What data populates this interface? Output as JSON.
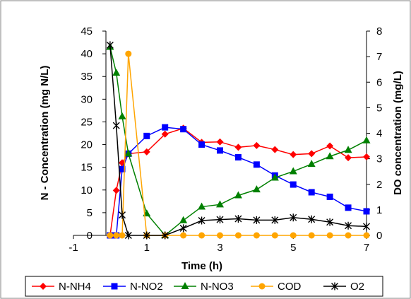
{
  "chart_data": {
    "type": "line",
    "xlabel": "Time (h)",
    "ylabel": "N - Concentration (mg N/L)",
    "y2label": "DO concentration (mg/L)",
    "xlim": [
      -1,
      7
    ],
    "ylim": [
      0,
      45
    ],
    "y2lim": [
      0,
      8
    ],
    "xticks": [
      "-1",
      "1",
      "3",
      "5",
      "7"
    ],
    "yticks": [
      "0",
      "5",
      "10",
      "15",
      "20",
      "25",
      "30",
      "35",
      "40",
      "45"
    ],
    "y2ticks": [
      "0",
      "1",
      "2",
      "3",
      "4",
      "5",
      "6",
      "7",
      "8"
    ],
    "grid": false,
    "legend_position": "bottom",
    "series": [
      {
        "name": "N-NH4",
        "color": "#ff0000",
        "marker": "diamond",
        "axis": "left",
        "x": [
          0,
          0.17,
          0.33,
          0.5,
          1,
          1.5,
          2,
          2.5,
          3,
          3.5,
          4,
          4.5,
          5,
          5.5,
          6,
          6.5,
          7
        ],
        "y": [
          0,
          9.9,
          16,
          18,
          18.4,
          22.3,
          23.6,
          20.5,
          20.6,
          19.4,
          19.8,
          18.9,
          17.8,
          18,
          19.7,
          17.1,
          17.3
        ]
      },
      {
        "name": "N-NO2",
        "color": "#0000ff",
        "marker": "square",
        "axis": "left",
        "x": [
          0,
          0.17,
          0.33,
          0.5,
          1,
          1.5,
          2,
          2.5,
          3,
          3.5,
          4,
          4.5,
          5,
          5.5,
          6,
          6.5,
          7
        ],
        "y": [
          0,
          0,
          14.6,
          18,
          21.9,
          23.8,
          23.4,
          20,
          18.7,
          17.2,
          15.6,
          13.2,
          11.2,
          9.5,
          8.5,
          6.1,
          5.3
        ]
      },
      {
        "name": "N-NO3",
        "color": "#008000",
        "marker": "triangle",
        "axis": "left",
        "x": [
          0,
          0.17,
          0.33,
          0.5,
          1,
          1.5,
          2,
          2.5,
          3,
          3.5,
          4,
          4.5,
          5,
          5.5,
          6,
          6.5,
          7
        ],
        "y": [
          41.5,
          35.8,
          26.2,
          18,
          4.8,
          0,
          3.3,
          6.3,
          6.8,
          8.8,
          10.1,
          12.7,
          14.1,
          15.7,
          17.4,
          18.8,
          20.9
        ]
      },
      {
        "name": "COD",
        "color": "#ffa500",
        "marker": "circle",
        "axis": "left",
        "x": [
          0,
          0.17,
          0.33,
          0.5,
          1,
          1.5,
          2,
          2.5,
          3,
          3.5,
          4,
          4.5,
          5,
          5.5,
          6,
          6.5,
          7
        ],
        "y": [
          0,
          0,
          0,
          40,
          0,
          0,
          0,
          0,
          0,
          0,
          0,
          0,
          0,
          0,
          0,
          0,
          0
        ]
      },
      {
        "name": "O2",
        "color": "#000000",
        "marker": "star",
        "axis": "right",
        "x": [
          0,
          0.17,
          0.33,
          0.5,
          1,
          1.5,
          2,
          2.5,
          3,
          3.5,
          4,
          4.5,
          5,
          5.5,
          6,
          6.5,
          7
        ],
        "y": [
          7.45,
          4.3,
          0.8,
          0,
          0,
          0,
          0.28,
          0.58,
          0.62,
          0.65,
          0.6,
          0.6,
          0.7,
          0.63,
          0.52,
          0.38,
          0.35
        ]
      }
    ]
  }
}
